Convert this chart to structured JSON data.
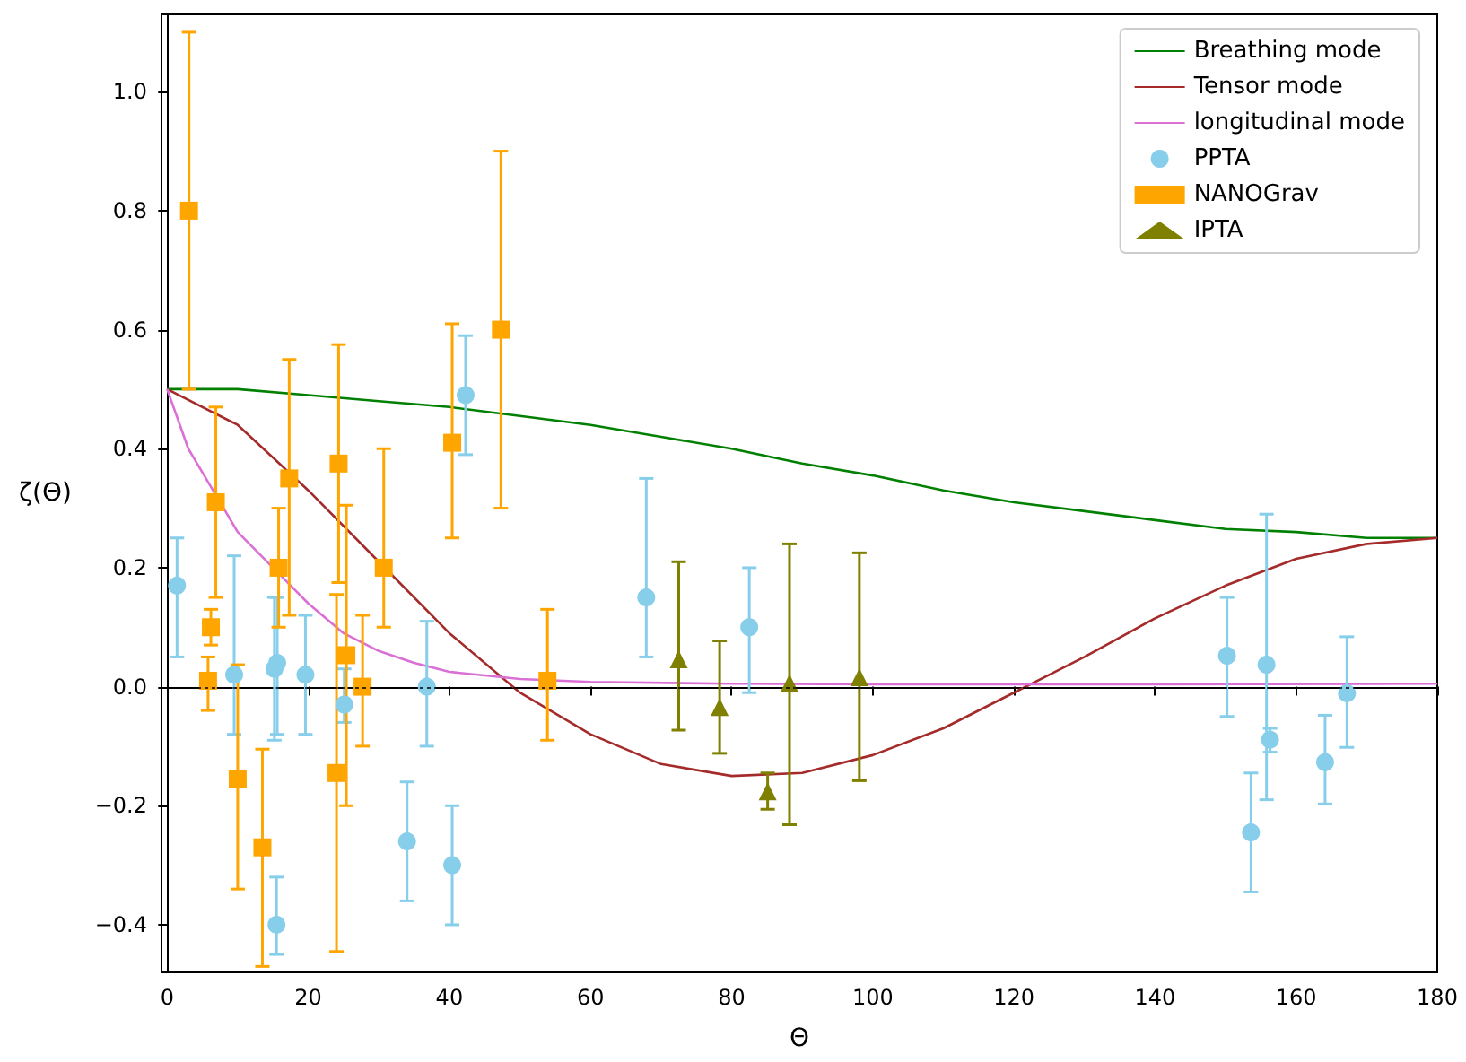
{
  "chart_data": {
    "type": "scatter",
    "xlabel": "Θ",
    "ylabel": "ζ(Θ)",
    "xlim": [
      -0.8,
      180
    ],
    "ylim": [
      -0.48,
      1.13
    ],
    "xticks": [
      0,
      20,
      40,
      60,
      80,
      100,
      120,
      140,
      160,
      180
    ],
    "yticks": [
      {
        "value": -0.4,
        "label": "−0.4"
      },
      {
        "value": -0.2,
        "label": "−0.2"
      },
      {
        "value": 0,
        "label": "0.0"
      },
      {
        "value": 0.2,
        "label": "0.2"
      },
      {
        "value": 0.4,
        "label": "0.4"
      },
      {
        "value": 0.6,
        "label": "0.6"
      },
      {
        "value": 0.8,
        "label": "0.8"
      },
      {
        "value": 1,
        "label": "1.0"
      }
    ],
    "legend": "top right",
    "ref_lines": [
      {
        "axis": "y",
        "value": 0,
        "color": "#000000",
        "line_style": "dotted"
      }
    ],
    "series": [
      {
        "name": "Breathing mode",
        "type": "line",
        "color": "#008000",
        "line_style": "solid",
        "x": [
          0,
          10,
          20,
          30,
          40,
          50,
          60,
          70,
          80,
          90,
          100,
          110,
          120,
          130,
          140,
          150,
          160,
          170,
          180
        ],
        "values": [
          0.5,
          0.5,
          0.49,
          0.48,
          0.47,
          0.455,
          0.44,
          0.42,
          0.4,
          0.375,
          0.355,
          0.33,
          0.31,
          0.295,
          0.28,
          0.265,
          0.26,
          0.25,
          0.25
        ]
      },
      {
        "name": "Tensor mode",
        "type": "line",
        "color": "#a52a2a",
        "line_style": "solid",
        "x": [
          0,
          10,
          20,
          30,
          40,
          50,
          60,
          70,
          80,
          90,
          100,
          110,
          120,
          130,
          140,
          150,
          160,
          170,
          180
        ],
        "values": [
          0.5,
          0.44,
          0.33,
          0.21,
          0.09,
          -0.01,
          -0.08,
          -0.13,
          -0.15,
          -0.145,
          -0.115,
          -0.07,
          -0.01,
          0.05,
          0.115,
          0.17,
          0.215,
          0.24,
          0.25
        ]
      },
      {
        "name": "longitudinal mode",
        "type": "line",
        "color": "#da70d6",
        "line_style": "solid",
        "x": [
          0,
          3,
          10,
          15,
          20,
          25,
          30,
          35,
          40,
          50,
          60,
          80,
          100,
          140,
          180
        ],
        "values": [
          0.5,
          0.4,
          0.26,
          0.2,
          0.14,
          0.09,
          0.06,
          0.04,
          0.025,
          0.013,
          0.008,
          0.005,
          0.004,
          0.004,
          0.005
        ]
      },
      {
        "name": "PPTA",
        "marker": "circle",
        "color": "#87ceeb",
        "x": [
          1.4,
          9.5,
          15.2,
          15.6,
          19.6,
          15.5,
          25.1,
          36.8,
          34,
          40.4,
          42.3,
          67.9,
          82.5,
          150.2,
          155.8,
          156.3,
          153.6,
          164.1,
          167.2
        ],
        "values": [
          0.17,
          0.02,
          0.03,
          0.04,
          0.02,
          -0.4,
          -0.03,
          0,
          -0.26,
          -0.3,
          0.49,
          0.15,
          0.1,
          0.052,
          0.037,
          -0.089,
          -0.245,
          -0.127,
          -0.011
        ],
        "errors": [
          [
            0.05,
            0.25
          ],
          [
            -0.08,
            0.22
          ],
          [
            -0.09,
            0.15
          ],
          [
            -0.08,
            0.15
          ],
          [
            -0.08,
            0.12
          ],
          [
            -0.45,
            -0.32
          ],
          [
            -0.06,
            0.03
          ],
          [
            -0.1,
            0.11
          ],
          [
            -0.36,
            -0.16
          ],
          [
            -0.4,
            -0.2
          ],
          [
            0.39,
            0.59
          ],
          [
            0.05,
            0.35
          ],
          [
            -0.01,
            0.2
          ],
          [
            -0.05,
            0.15
          ],
          [
            -0.19,
            0.29
          ],
          [
            -0.11,
            -0.07
          ],
          [
            -0.345,
            -0.145
          ],
          [
            -0.197,
            -0.048
          ],
          [
            -0.102,
            0.084
          ]
        ]
      },
      {
        "name": "NANOGrav",
        "marker": "square",
        "color": "#ffa500",
        "x": [
          3.1,
          5.8,
          6.2,
          6.9,
          10,
          13.5,
          15.8,
          17.3,
          24.3,
          24,
          25.4,
          27.7,
          30.7,
          40.4,
          47.3,
          53.9
        ],
        "values": [
          0.8,
          0.01,
          0.1,
          0.31,
          -0.155,
          -0.27,
          0.2,
          0.35,
          0.375,
          -0.145,
          0.053,
          0,
          0.2,
          0.41,
          0.6,
          0.01
        ],
        "errors": [
          [
            0.5,
            1.1
          ],
          [
            -0.04,
            0.05
          ],
          [
            0.07,
            0.13
          ],
          [
            0.15,
            0.47
          ],
          [
            -0.34,
            0.037
          ],
          [
            -0.47,
            -0.105
          ],
          [
            0.1,
            0.3
          ],
          [
            0.12,
            0.55
          ],
          [
            0.175,
            0.575
          ],
          [
            -0.445,
            0.155
          ],
          [
            -0.2,
            0.305
          ],
          [
            -0.1,
            0.12
          ],
          [
            0.1,
            0.4
          ],
          [
            0.25,
            0.61
          ],
          [
            0.3,
            0.9
          ],
          [
            -0.09,
            0.13
          ]
        ]
      },
      {
        "name": "IPTA",
        "marker": "triangle",
        "color": "#808000",
        "x": [
          72.5,
          78.3,
          85.1,
          88.2,
          98.1
        ],
        "values": [
          0.046,
          -0.034,
          -0.176,
          0.006,
          0.016
        ],
        "errors": [
          [
            -0.073,
            0.21
          ],
          [
            -0.112,
            0.077
          ],
          [
            -0.206,
            -0.145
          ],
          [
            -0.232,
            0.24
          ],
          [
            -0.158,
            0.225
          ]
        ]
      }
    ]
  }
}
